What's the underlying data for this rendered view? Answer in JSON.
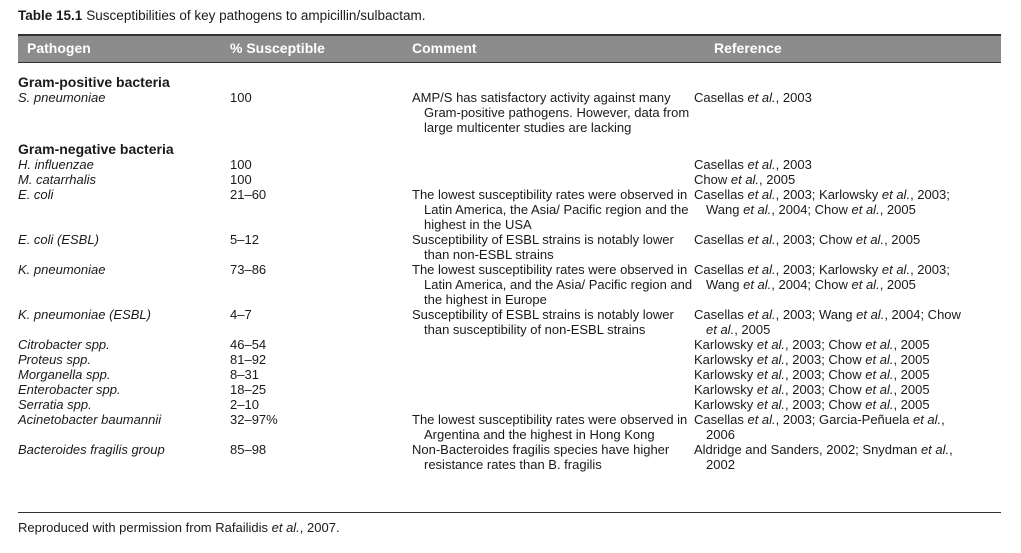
{
  "caption": {
    "label": "Table 15.1",
    "text": "Susceptibilities of key pathogens to ampicillin/sulbactam."
  },
  "columns": [
    "Pathogen",
    "% Susceptible",
    "Comment",
    "Reference"
  ],
  "groups": [
    {
      "title": "Gram-positive bacteria",
      "rows": [
        {
          "pathogen": "S. pneumoniae",
          "susceptible": "100",
          "comment": "AMP/S has satisfactory activity against many Gram-positive pathogens. However, data from large multicenter studies are lacking",
          "reference": "Casellas et al., 2003"
        }
      ]
    },
    {
      "title": "Gram-negative bacteria",
      "rows": [
        {
          "pathogen": "H. influenzae",
          "susceptible": "100",
          "comment": "",
          "reference": "Casellas et al., 2003"
        },
        {
          "pathogen": "M. catarrhalis",
          "susceptible": "100",
          "comment": "",
          "reference": "Chow et al., 2005"
        },
        {
          "pathogen": "E. coli",
          "susceptible": "21–60",
          "comment": "The lowest susceptibility rates were observed in Latin America, the Asia/ Pacific region and the highest in the USA",
          "reference": "Casellas et al., 2003; Karlowsky et al., 2003; Wang et al., 2004; Chow et al., 2005"
        },
        {
          "pathogen": "E. coli (ESBL)",
          "susceptible": "5–12",
          "comment": "Susceptibility of ESBL strains is notably lower than non-ESBL strains",
          "reference": "Casellas et al., 2003; Chow et al., 2005"
        },
        {
          "pathogen": "K. pneumoniae",
          "susceptible": "73–86",
          "comment": "The lowest susceptibility rates were observed in Latin America, and the Asia/ Pacific region and the highest in Europe",
          "reference": "Casellas et al., 2003; Karlowsky et al., 2003; Wang et al., 2004; Chow et al., 2005"
        },
        {
          "pathogen": "K. pneumoniae (ESBL)",
          "susceptible": "4–7",
          "comment": "Susceptibility of ESBL strains is notably lower than susceptibility of non-ESBL strains",
          "reference": "Casellas et al., 2003; Wang et al., 2004; Chow et al., 2005"
        },
        {
          "pathogen": "Citrobacter spp.",
          "susceptible": "46–54",
          "comment": "",
          "reference": "Karlowsky et al., 2003; Chow et al., 2005"
        },
        {
          "pathogen": "Proteus spp.",
          "susceptible": "81–92",
          "comment": "",
          "reference": "Karlowsky et al., 2003; Chow et al., 2005"
        },
        {
          "pathogen": "Morganella spp.",
          "susceptible": "8–31",
          "comment": "",
          "reference": "Karlowsky et al., 2003; Chow et al., 2005"
        },
        {
          "pathogen": "Enterobacter spp.",
          "susceptible": "18–25",
          "comment": "",
          "reference": "Karlowsky et al., 2003; Chow et al., 2005"
        },
        {
          "pathogen": "Serratia spp.",
          "susceptible": "2–10",
          "comment": "",
          "reference": "Karlowsky et al., 2003; Chow et al., 2005"
        },
        {
          "pathogen": "Acinetobacter baumannii",
          "susceptible": "32–97%",
          "comment": "The lowest susceptibility rates were observed in Argentina and the highest in Hong Kong",
          "reference": "Casellas et al., 2003; Garcia-Peñuela et al., 2006"
        },
        {
          "pathogen": "Bacteroides fragilis group",
          "susceptible": "85–98",
          "comment": "Non-Bacteroides fragilis species have higher resistance rates than B. fragilis",
          "reference": "Aldridge and Sanders, 2002; Snydman et al., 2002"
        }
      ]
    }
  ],
  "footer": "Reproduced with permission from Rafailidis et al., 2007."
}
